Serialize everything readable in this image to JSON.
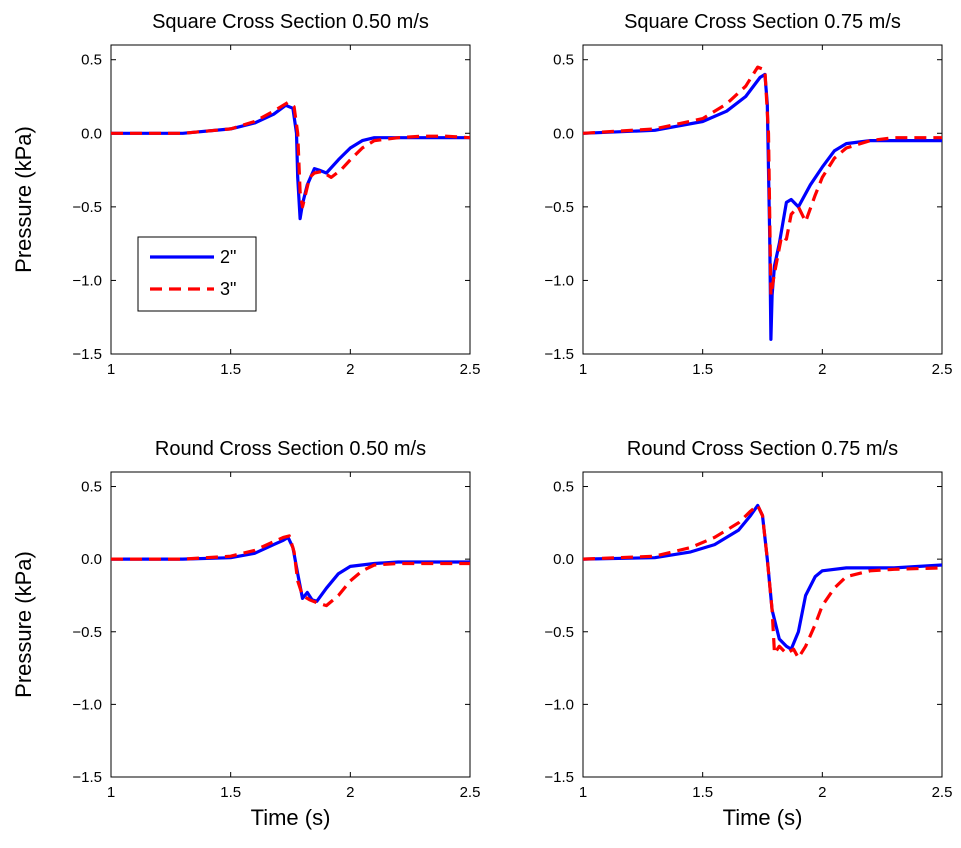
{
  "chart_data": [
    {
      "type": "line",
      "title": "Square Cross Section 0.50 m/s",
      "ylabel": "Pressure (kPa)",
      "xlabel": "",
      "xlim": [
        1,
        2.5
      ],
      "ylim": [
        -1.5,
        0.6
      ],
      "xticks": [
        "1",
        "1.5",
        "2",
        "2.5"
      ],
      "yticks": [
        "0.5",
        "0.0",
        "-0.5",
        "-1.0",
        "-1.5"
      ],
      "legend": true,
      "legend_position": "center-left",
      "series": [
        {
          "name": "2\"",
          "color": "#0000ff",
          "style": "solid",
          "x": [
            1.0,
            1.3,
            1.5,
            1.6,
            1.68,
            1.73,
            1.76,
            1.775,
            1.78,
            1.79,
            1.8,
            1.82,
            1.85,
            1.87,
            1.9,
            1.95,
            2.0,
            2.05,
            2.1,
            2.2,
            2.3,
            2.5
          ],
          "y": [
            0.0,
            0.0,
            0.03,
            0.07,
            0.13,
            0.19,
            0.17,
            0.0,
            -0.3,
            -0.58,
            -0.48,
            -0.35,
            -0.24,
            -0.25,
            -0.27,
            -0.18,
            -0.1,
            -0.05,
            -0.03,
            -0.03,
            -0.03,
            -0.03
          ]
        },
        {
          "name": "3\"",
          "color": "#ff0000",
          "style": "dashed",
          "x": [
            1.0,
            1.3,
            1.5,
            1.6,
            1.68,
            1.74,
            1.765,
            1.78,
            1.79,
            1.8,
            1.83,
            1.85,
            1.88,
            1.92,
            1.96,
            2.0,
            2.05,
            2.1,
            2.2,
            2.3,
            2.4,
            2.5
          ],
          "y": [
            0.0,
            0.0,
            0.03,
            0.08,
            0.15,
            0.21,
            0.18,
            0.0,
            -0.4,
            -0.5,
            -0.3,
            -0.27,
            -0.26,
            -0.3,
            -0.25,
            -0.18,
            -0.1,
            -0.05,
            -0.03,
            -0.02,
            -0.02,
            -0.03
          ]
        }
      ]
    },
    {
      "type": "line",
      "title": "Square Cross Section 0.75 m/s",
      "ylabel": "",
      "xlabel": "",
      "xlim": [
        1,
        2.5
      ],
      "ylim": [
        -1.5,
        0.6
      ],
      "xticks": [
        "1",
        "1.5",
        "2",
        "2.5"
      ],
      "yticks": [
        "0.5",
        "0.0",
        "-0.5",
        "-1.0",
        "-1.5"
      ],
      "legend": false,
      "series": [
        {
          "name": "2\"",
          "color": "#0000ff",
          "style": "solid",
          "x": [
            1.0,
            1.3,
            1.5,
            1.6,
            1.68,
            1.74,
            1.76,
            1.77,
            1.78,
            1.785,
            1.79,
            1.8,
            1.82,
            1.85,
            1.87,
            1.9,
            1.95,
            2.0,
            2.05,
            2.1,
            2.2,
            2.3,
            2.5
          ],
          "y": [
            0.0,
            0.02,
            0.08,
            0.15,
            0.25,
            0.38,
            0.4,
            0.2,
            -0.7,
            -1.4,
            -1.1,
            -0.9,
            -0.75,
            -0.47,
            -0.45,
            -0.5,
            -0.35,
            -0.23,
            -0.12,
            -0.07,
            -0.05,
            -0.05,
            -0.05
          ]
        },
        {
          "name": "3\"",
          "color": "#ff0000",
          "style": "dashed",
          "x": [
            1.0,
            1.3,
            1.5,
            1.6,
            1.68,
            1.73,
            1.76,
            1.775,
            1.785,
            1.8,
            1.83,
            1.85,
            1.87,
            1.9,
            1.93,
            1.97,
            2.0,
            2.05,
            2.1,
            2.2,
            2.3,
            2.4,
            2.5
          ],
          "y": [
            0.0,
            0.03,
            0.1,
            0.2,
            0.32,
            0.45,
            0.43,
            0.0,
            -1.1,
            -0.95,
            -0.7,
            -0.72,
            -0.55,
            -0.5,
            -0.6,
            -0.42,
            -0.3,
            -0.17,
            -0.1,
            -0.05,
            -0.03,
            -0.03,
            -0.03
          ]
        }
      ]
    },
    {
      "type": "line",
      "title": "Round Cross Section 0.50 m/s",
      "ylabel": "Pressure (kPa)",
      "xlabel": "Time (s)",
      "xlim": [
        1,
        2.5
      ],
      "ylim": [
        -1.5,
        0.6
      ],
      "xticks": [
        "1",
        "1.5",
        "2",
        "2.5"
      ],
      "yticks": [
        "0.5",
        "0.0",
        "-0.5",
        "-1.0",
        "-1.5"
      ],
      "legend": false,
      "series": [
        {
          "name": "2\"",
          "color": "#0000ff",
          "style": "solid",
          "x": [
            1.0,
            1.3,
            1.5,
            1.6,
            1.68,
            1.72,
            1.74,
            1.76,
            1.78,
            1.8,
            1.82,
            1.84,
            1.86,
            1.9,
            1.95,
            2.0,
            2.1,
            2.2,
            2.3,
            2.4,
            2.5
          ],
          "y": [
            0.0,
            0.0,
            0.01,
            0.04,
            0.1,
            0.13,
            0.15,
            0.08,
            -0.1,
            -0.27,
            -0.23,
            -0.28,
            -0.29,
            -0.2,
            -0.1,
            -0.05,
            -0.03,
            -0.02,
            -0.02,
            -0.02,
            -0.02
          ]
        },
        {
          "name": "3\"",
          "color": "#ff0000",
          "style": "dashed",
          "x": [
            1.0,
            1.3,
            1.5,
            1.6,
            1.68,
            1.72,
            1.745,
            1.765,
            1.78,
            1.8,
            1.83,
            1.86,
            1.9,
            1.95,
            2.0,
            2.05,
            2.1,
            2.2,
            2.3,
            2.4,
            2.5
          ],
          "y": [
            0.0,
            0.0,
            0.02,
            0.06,
            0.12,
            0.15,
            0.16,
            0.05,
            -0.15,
            -0.25,
            -0.28,
            -0.3,
            -0.32,
            -0.25,
            -0.15,
            -0.08,
            -0.04,
            -0.03,
            -0.03,
            -0.03,
            -0.03
          ]
        }
      ]
    },
    {
      "type": "line",
      "title": "Round Cross Section 0.75 m/s",
      "ylabel": "",
      "xlabel": "Time (s)",
      "xlim": [
        1,
        2.5
      ],
      "ylim": [
        -1.5,
        0.6
      ],
      "xticks": [
        "1",
        "1.5",
        "2",
        "2.5"
      ],
      "yticks": [
        "0.5",
        "0.0",
        "-0.5",
        "-1.0",
        "-1.5"
      ],
      "legend": false,
      "series": [
        {
          "name": "2\"",
          "color": "#0000ff",
          "style": "solid",
          "x": [
            1.0,
            1.3,
            1.45,
            1.55,
            1.6,
            1.65,
            1.7,
            1.73,
            1.75,
            1.77,
            1.79,
            1.82,
            1.85,
            1.87,
            1.9,
            1.93,
            1.97,
            2.0,
            2.1,
            2.2,
            2.3,
            2.5
          ],
          "y": [
            0.0,
            0.01,
            0.05,
            0.1,
            0.15,
            0.2,
            0.3,
            0.37,
            0.3,
            0.0,
            -0.35,
            -0.55,
            -0.6,
            -0.62,
            -0.5,
            -0.25,
            -0.12,
            -0.08,
            -0.06,
            -0.06,
            -0.06,
            -0.04
          ]
        },
        {
          "name": "3\"",
          "color": "#ff0000",
          "style": "dashed",
          "x": [
            1.0,
            1.3,
            1.45,
            1.55,
            1.6,
            1.65,
            1.7,
            1.73,
            1.75,
            1.77,
            1.79,
            1.8,
            1.82,
            1.85,
            1.88,
            1.9,
            1.93,
            1.97,
            2.0,
            2.05,
            2.1,
            2.2,
            2.3,
            2.5
          ],
          "y": [
            0.0,
            0.02,
            0.08,
            0.15,
            0.2,
            0.25,
            0.33,
            0.37,
            0.3,
            0.0,
            -0.35,
            -0.65,
            -0.6,
            -0.65,
            -0.62,
            -0.68,
            -0.6,
            -0.45,
            -0.32,
            -0.2,
            -0.12,
            -0.08,
            -0.07,
            -0.06
          ]
        }
      ]
    }
  ]
}
